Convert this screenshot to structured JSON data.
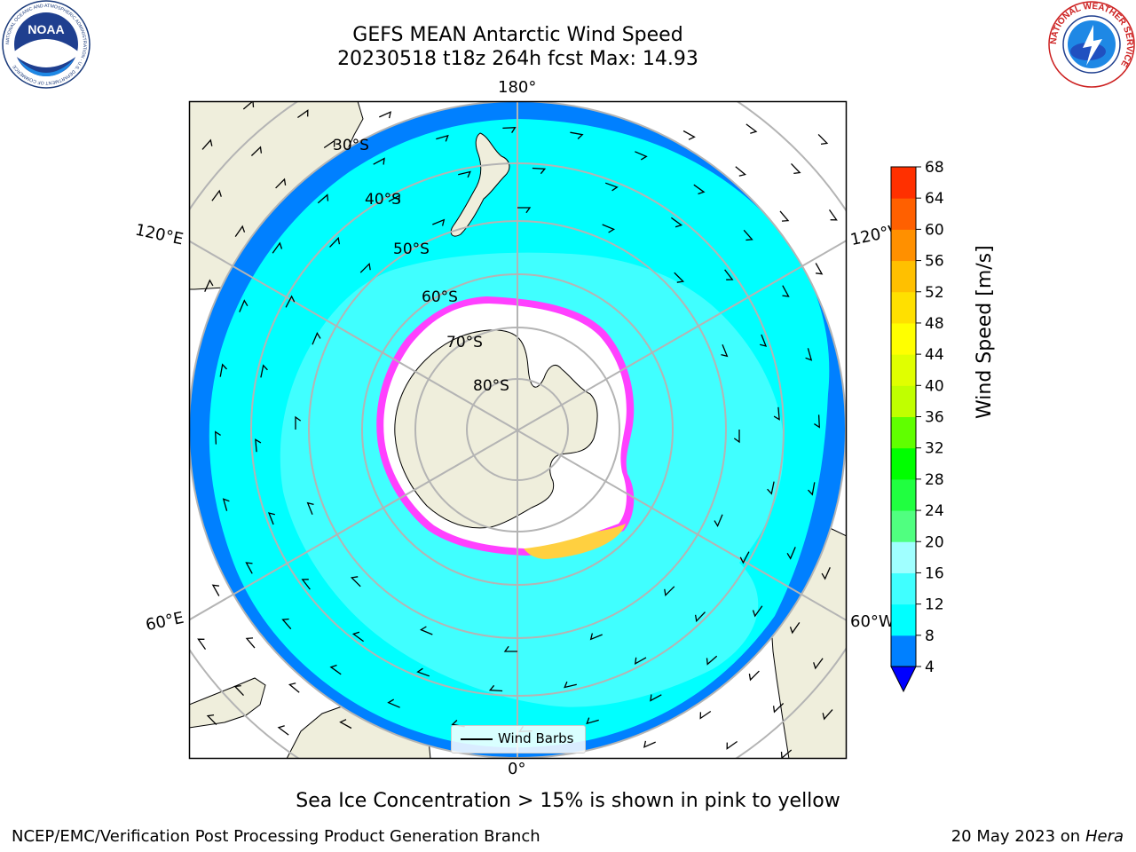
{
  "header": {
    "title_line1": "GEFS MEAN Antarctic Wind Speed",
    "title_line2": "20230518 t18z 264h fcst   Max: 14.93"
  },
  "map": {
    "projection": "south-polar-stereographic",
    "longitude_labels": {
      "top": "180°",
      "bottom": "0°",
      "upper_left": "120°E",
      "upper_right": "120°W",
      "lower_left": "60°E",
      "lower_right": "60°W"
    },
    "latitude_labels": [
      "30°S",
      "40°S",
      "50°S",
      "60°S",
      "70°S",
      "80°S"
    ],
    "colors": {
      "land": "#efeedc",
      "ice_shelf": "#ffffff",
      "band_4_8": "#0080ff",
      "band_8_12": "#00ffff",
      "band_12_16": "#40ffff",
      "sea_ice_edge": "#ff40ff",
      "sea_ice_high": "#ffd040",
      "gridline": "#b4b4b4"
    },
    "legend_label": "Wind Barbs"
  },
  "colorbar": {
    "label": "Wind Speed [m/s]",
    "ticks": [
      "4",
      "8",
      "12",
      "16",
      "20",
      "24",
      "28",
      "32",
      "36",
      "40",
      "44",
      "48",
      "52",
      "56",
      "60",
      "64",
      "68"
    ],
    "colors": [
      "#0080ff",
      "#00ffff",
      "#40ffff",
      "#a0ffff",
      "#50ff80",
      "#20ff40",
      "#00ff00",
      "#60ff00",
      "#c0ff00",
      "#e0ff00",
      "#ffff00",
      "#ffe000",
      "#ffc000",
      "#ff9000",
      "#ff6000",
      "#ff3000",
      "#ff0000"
    ],
    "under_color": "#0000ff"
  },
  "footer": {
    "note": "Sea Ice Concentration > 15% is shown in pink to yellow",
    "left": "NCEP/EMC/Verification Post Processing Product Generation Branch",
    "date": "20 May 2023 on",
    "machine": "Hera"
  },
  "logos": {
    "noaa_text": "NOAA",
    "noaa_ring": "NATIONAL OCEANIC AND ATMOSPHERIC ADMINISTRATION · U.S. DEPARTMENT OF COMMERCE",
    "nws_ring": "NATIONAL WEATHER SERVICE"
  }
}
